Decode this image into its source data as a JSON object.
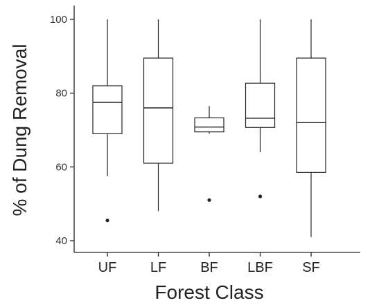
{
  "chart_data": {
    "type": "boxplot",
    "title": "",
    "xlabel": "Forest Class",
    "ylabel": "% of Dung Removal",
    "ylim": [
      38,
      103
    ],
    "yticks": [
      40,
      60,
      80,
      100
    ],
    "grid": false,
    "legend": "none",
    "categories": [
      "UF",
      "LF",
      "BF",
      "LBF",
      "SF"
    ],
    "boxes": [
      {
        "category": "UF",
        "min": 57.5,
        "q1": 69,
        "median": 77.5,
        "q3": 82,
        "max": 100,
        "outliers": [
          45.5
        ]
      },
      {
        "category": "LF",
        "min": 48,
        "q1": 61,
        "median": 76,
        "q3": 89.5,
        "max": 100,
        "outliers": []
      },
      {
        "category": "BF",
        "min": 69,
        "q1": 69.5,
        "median": 70.8,
        "q3": 73.3,
        "max": 76.5,
        "outliers": [
          51
        ]
      },
      {
        "category": "LBF",
        "min": 64,
        "q1": 70.7,
        "median": 73.2,
        "q3": 82.7,
        "max": 100,
        "outliers": [
          52
        ]
      },
      {
        "category": "SF",
        "min": 41,
        "q1": 58.5,
        "median": 72,
        "q3": 89.5,
        "max": 100,
        "outliers": []
      }
    ],
    "colors": {
      "line": "#222222",
      "box_fill": "#ffffff"
    }
  }
}
